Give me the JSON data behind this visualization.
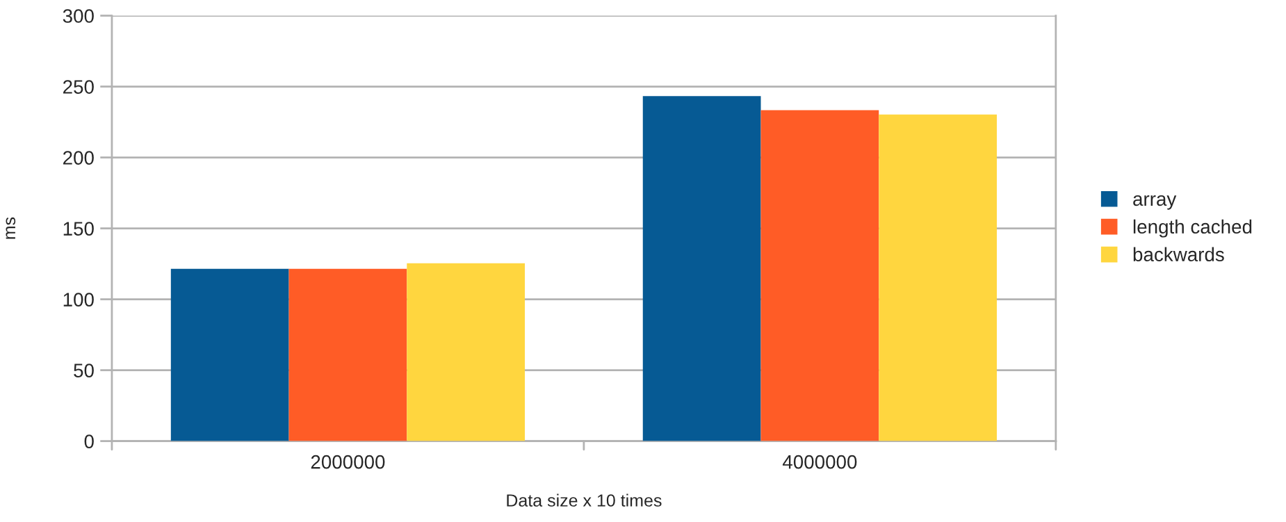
{
  "chart_data": {
    "type": "bar",
    "xlabel": "Data size x 10 times",
    "ylabel": "ms",
    "categories": [
      "2000000",
      "4000000"
    ],
    "series": [
      {
        "name": "array",
        "color": "#065a94",
        "values": [
          121.5,
          243.3
        ]
      },
      {
        "name": "length cached",
        "color": "#ff5c26",
        "values": [
          121.5,
          233.4
        ]
      },
      {
        "name": "backwards",
        "color": "#ffd63f",
        "values": [
          125.4,
          230.3
        ]
      }
    ],
    "ylim": [
      0,
      300
    ],
    "yticks": [
      0,
      50,
      100,
      150,
      200,
      250,
      300
    ],
    "grid": "y",
    "legend": "right"
  }
}
